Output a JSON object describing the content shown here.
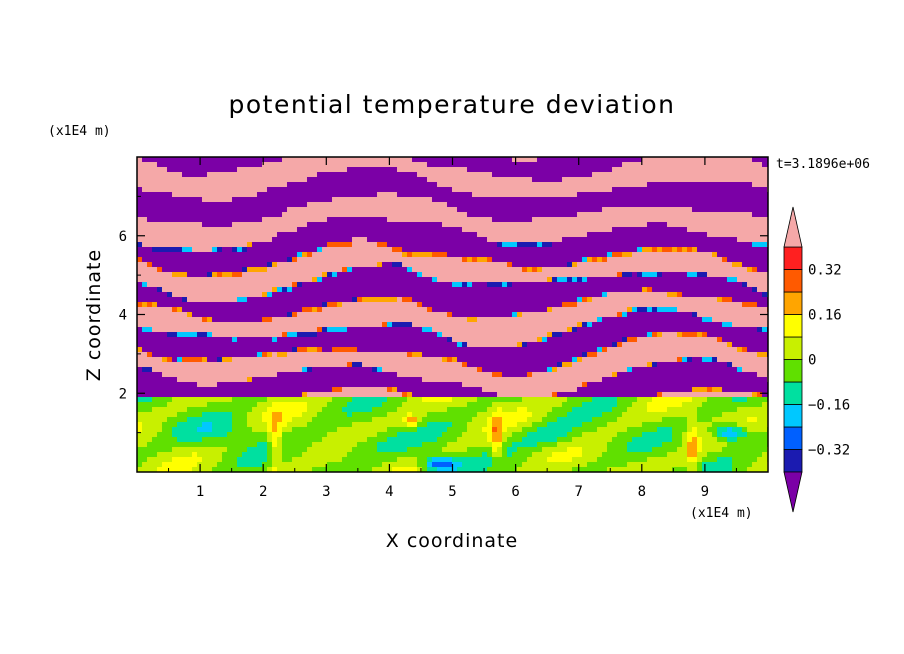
{
  "chart_data": {
    "type": "heatmap",
    "title": "potential temperature deviation",
    "xlabel": "X coordinate",
    "ylabel": "Z coordinate",
    "x_units": "(x1E4 m)",
    "y_units": "(x1E4 m)",
    "time_label": "t=3.1896e+06",
    "xlim": [
      0,
      10
    ],
    "ylim": [
      0,
      8
    ],
    "x_ticks": [
      "1",
      "2",
      "3",
      "4",
      "5",
      "6",
      "7",
      "8",
      "9"
    ],
    "y_ticks": [
      "2",
      "4",
      "6"
    ],
    "colorbar": {
      "labels": [
        "0.32",
        "0.16",
        "0",
        "-0.16",
        "-0.32"
      ],
      "label_display": [
        "0.32",
        "0.16",
        "0",
        "−0.16",
        "−0.32"
      ],
      "levels": [
        -0.4,
        -0.32,
        -0.24,
        -0.16,
        -0.08,
        0,
        0.08,
        0.16,
        0.24,
        0.32,
        0.4
      ],
      "colors_low_to_high": [
        "#7b00a6",
        "#1b1bb0",
        "#0060ff",
        "#00c8ff",
        "#00e0a0",
        "#60e000",
        "#c8f000",
        "#ffff00",
        "#ffa500",
        "#ff5a00",
        "#ff2020",
        "#f5a8a8"
      ],
      "extend": "both"
    }
  }
}
